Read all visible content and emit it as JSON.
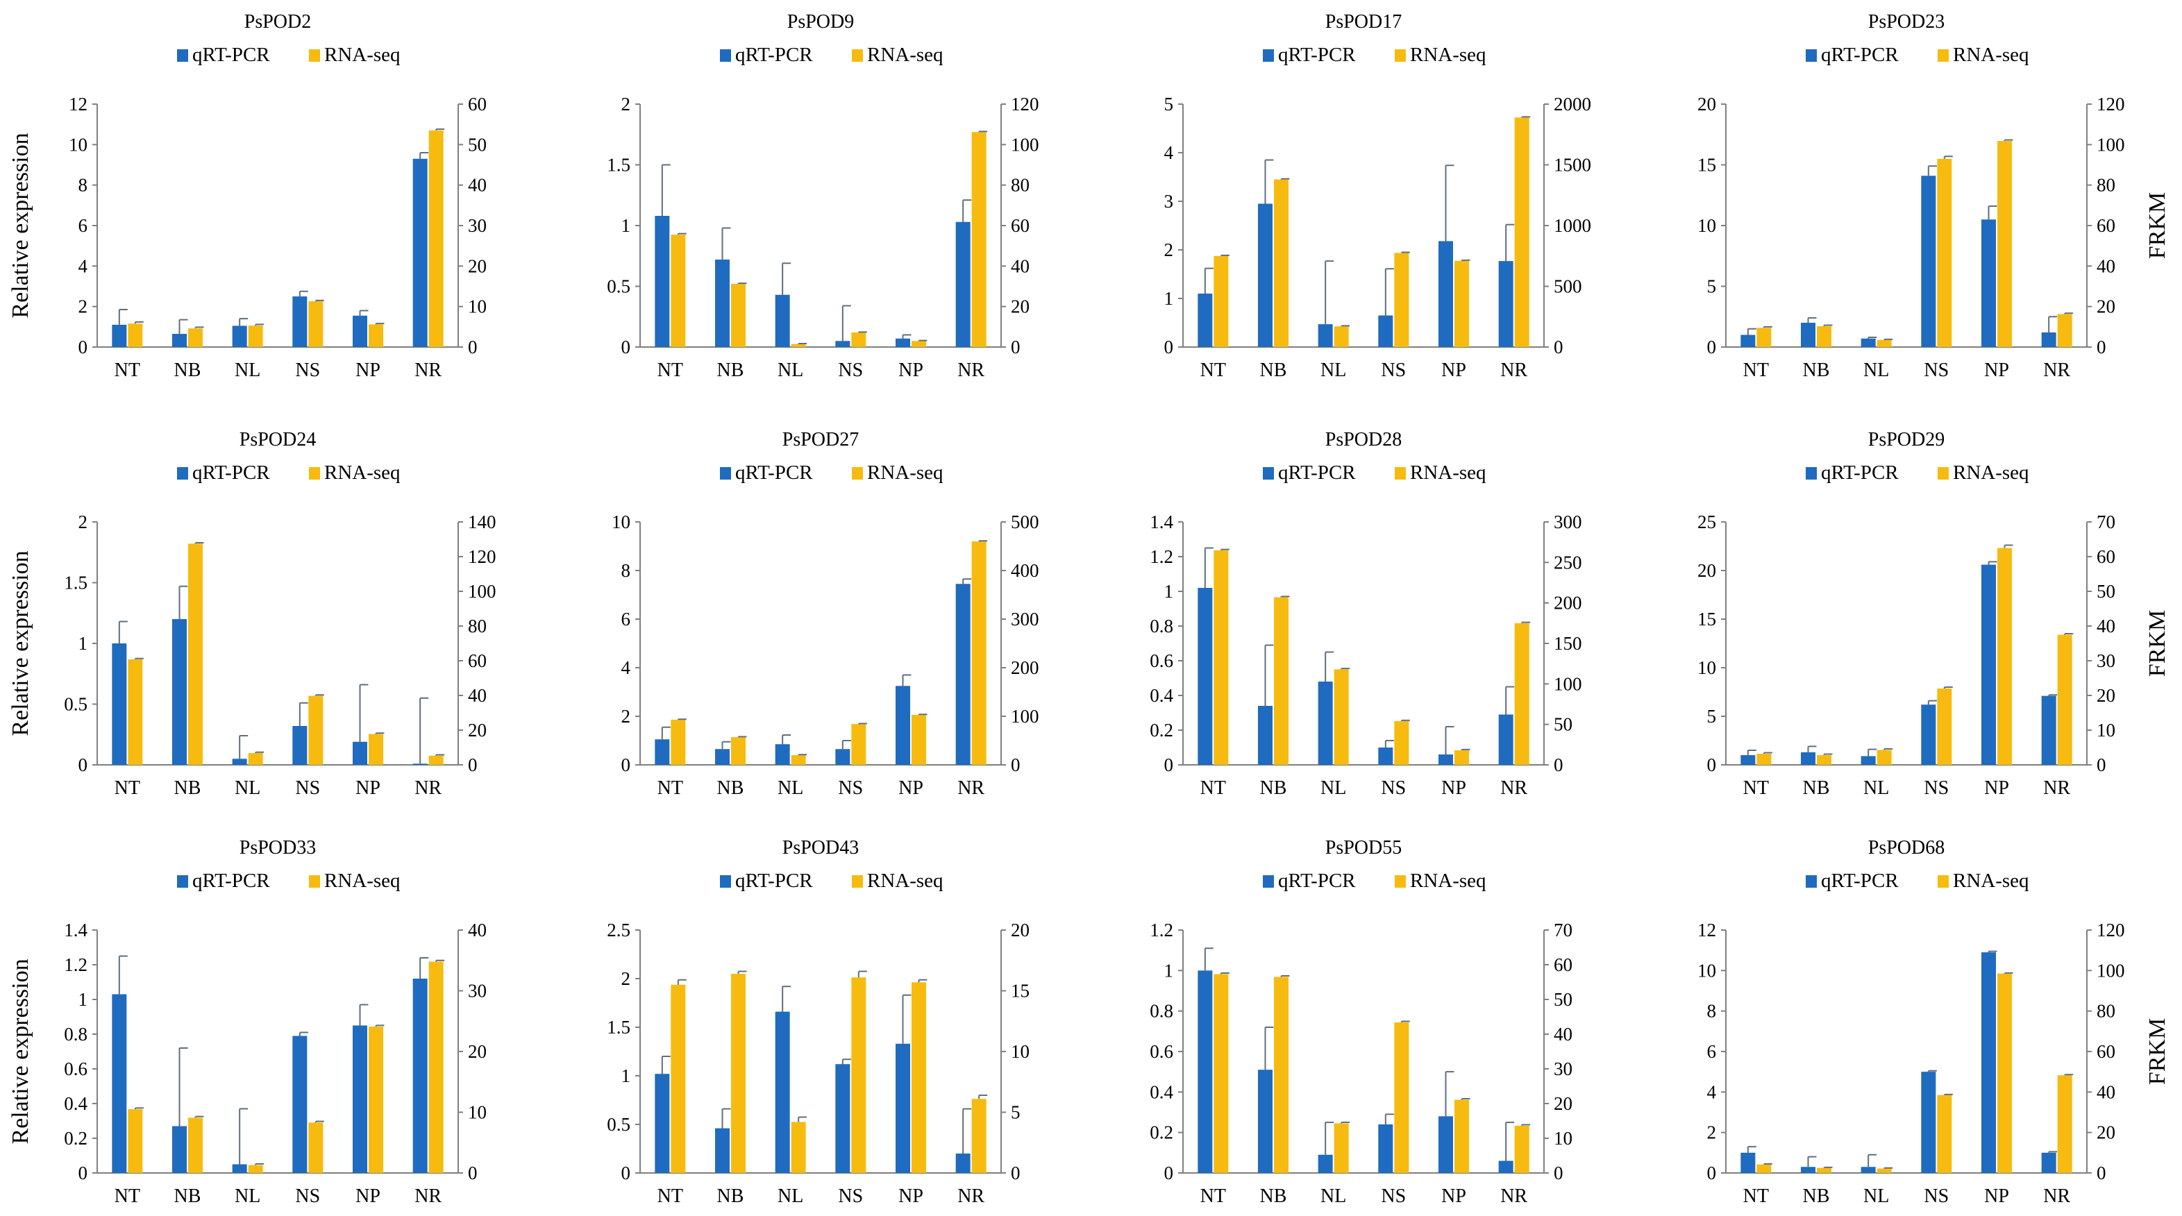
{
  "figure": {
    "left_axis_label": "Relative expression",
    "right_axis_label": "FRKM",
    "colors": {
      "qrt": "#1f6bbf",
      "rna": "#f7bb10",
      "axis": "#7f7f7f"
    }
  },
  "chart_data": [
    {
      "type": "bar",
      "title": "PsPOD2",
      "categories": [
        "NT",
        "NB",
        "NL",
        "NS",
        "NP",
        "NR"
      ],
      "series": [
        {
          "name": "qRT-PCR",
          "axis": "left",
          "values": [
            1.1,
            0.65,
            1.05,
            2.5,
            1.55,
            9.3
          ],
          "errors": [
            0.75,
            0.7,
            0.35,
            0.25,
            0.25,
            0.3
          ]
        },
        {
          "name": "RNA-seq",
          "axis": "right",
          "values": [
            5.8,
            4.6,
            5.3,
            11.3,
            5.6,
            53.5
          ],
          "errors": [
            0.4,
            0.3,
            0.3,
            0.2,
            0.2,
            0.3
          ]
        }
      ],
      "ylim_left": [
        0,
        12
      ],
      "yticks_left": [
        "0",
        "2",
        "4",
        "6",
        "8",
        "10",
        "12"
      ],
      "ylim_right": [
        0,
        60
      ],
      "yticks_right": [
        "0",
        "10",
        "20",
        "30",
        "40",
        "50",
        "60"
      ]
    },
    {
      "type": "bar",
      "title": "PsPOD9",
      "categories": [
        "NT",
        "NB",
        "NL",
        "NS",
        "NP",
        "NR"
      ],
      "series": [
        {
          "name": "qRT-PCR",
          "axis": "left",
          "values": [
            1.08,
            0.72,
            0.43,
            0.05,
            0.07,
            1.03
          ],
          "errors": [
            0.42,
            0.26,
            0.26,
            0.29,
            0.03,
            0.18
          ]
        },
        {
          "name": "RNA-seq",
          "axis": "right",
          "values": [
            55.5,
            31.2,
            1.5,
            7.2,
            3.0,
            106.2
          ],
          "errors": [
            0.5,
            0.3,
            0.2,
            0.2,
            0.2,
            0.3
          ]
        }
      ],
      "ylim_left": [
        0,
        2
      ],
      "yticks_left": [
        "0",
        "0.5",
        "1",
        "1.5",
        "2"
      ],
      "ylim_right": [
        0,
        120
      ],
      "yticks_right": [
        "0",
        "20",
        "40",
        "60",
        "80",
        "100",
        "120"
      ]
    },
    {
      "type": "bar",
      "title": "PsPOD17",
      "categories": [
        "NT",
        "NB",
        "NL",
        "NS",
        "NP",
        "NR"
      ],
      "series": [
        {
          "name": "qRT-PCR",
          "axis": "left",
          "values": [
            1.1,
            2.95,
            0.47,
            0.65,
            2.18,
            1.77
          ],
          "errors": [
            0.52,
            0.9,
            1.3,
            0.96,
            1.56,
            0.75
          ]
        },
        {
          "name": "RNA-seq",
          "axis": "right",
          "values": [
            750,
            1380,
            170,
            775,
            710,
            1890
          ],
          "errors": [
            5,
            5,
            5,
            5,
            5,
            5
          ]
        }
      ],
      "ylim_left": [
        0,
        5
      ],
      "yticks_left": [
        "0",
        "1",
        "2",
        "3",
        "4",
        "5"
      ],
      "ylim_right": [
        0,
        2000
      ],
      "yticks_right": [
        "0",
        "500",
        "1000",
        "1500",
        "2000"
      ]
    },
    {
      "type": "bar",
      "title": "PsPOD23",
      "categories": [
        "NT",
        "NB",
        "NL",
        "NS",
        "NP",
        "NR"
      ],
      "series": [
        {
          "name": "qRT-PCR",
          "axis": "left",
          "values": [
            1.0,
            2.0,
            0.7,
            14.1,
            10.5,
            1.2
          ],
          "errors": [
            0.5,
            0.4,
            0.1,
            0.8,
            1.1,
            1.3
          ]
        },
        {
          "name": "RNA-seq",
          "axis": "right",
          "values": [
            9.5,
            10.3,
            3.5,
            93,
            101.8,
            16.3
          ],
          "errors": [
            0.5,
            0.5,
            0.3,
            1.2,
            0.5,
            0.4
          ]
        }
      ],
      "ylim_left": [
        0,
        20
      ],
      "yticks_left": [
        "0",
        "5",
        "10",
        "15",
        "20"
      ],
      "ylim_right": [
        0,
        120
      ],
      "yticks_right": [
        "0",
        "20",
        "40",
        "60",
        "80",
        "100",
        "120"
      ]
    },
    {
      "type": "bar",
      "title": "PsPOD24",
      "categories": [
        "NT",
        "NB",
        "NL",
        "NS",
        "NP",
        "NR"
      ],
      "series": [
        {
          "name": "qRT-PCR",
          "axis": "left",
          "values": [
            1.0,
            1.2,
            0.05,
            0.32,
            0.19,
            0.01
          ],
          "errors": [
            0.18,
            0.27,
            0.19,
            0.19,
            0.47,
            0.54
          ]
        },
        {
          "name": "RNA-seq",
          "axis": "right",
          "values": [
            60.8,
            127.5,
            6.8,
            39.8,
            17.8,
            5.3
          ],
          "errors": [
            0.5,
            0.5,
            0.5,
            0.5,
            0.5,
            0.5
          ]
        }
      ],
      "ylim_left": [
        0,
        2
      ],
      "yticks_left": [
        "0",
        "0.5",
        "1",
        "1.5",
        "2"
      ],
      "ylim_right": [
        0,
        140
      ],
      "yticks_right": [
        "0",
        "20",
        "40",
        "60",
        "80",
        "100",
        "120",
        "140"
      ]
    },
    {
      "type": "bar",
      "title": "PsPOD27",
      "categories": [
        "NT",
        "NB",
        "NL",
        "NS",
        "NP",
        "NR"
      ],
      "series": [
        {
          "name": "qRT-PCR",
          "axis": "left",
          "values": [
            1.05,
            0.65,
            0.85,
            0.65,
            3.25,
            7.45
          ],
          "errors": [
            0.5,
            0.3,
            0.38,
            0.35,
            0.45,
            0.2
          ]
        },
        {
          "name": "RNA-seq",
          "axis": "right",
          "values": [
            93,
            57,
            20,
            84,
            103,
            460
          ],
          "errors": [
            1,
            1,
            1,
            1,
            1,
            1
          ]
        }
      ],
      "ylim_left": [
        0,
        10
      ],
      "yticks_left": [
        "0",
        "2",
        "4",
        "6",
        "8",
        "10"
      ],
      "ylim_right": [
        0,
        500
      ],
      "yticks_right": [
        "0",
        "100",
        "200",
        "300",
        "400",
        "500"
      ]
    },
    {
      "type": "bar",
      "title": "PsPOD28",
      "categories": [
        "NT",
        "NB",
        "NL",
        "NS",
        "NP",
        "NR"
      ],
      "series": [
        {
          "name": "qRT-PCR",
          "axis": "left",
          "values": [
            1.02,
            0.34,
            0.48,
            0.1,
            0.06,
            0.29
          ],
          "errors": [
            0.23,
            0.35,
            0.17,
            0.04,
            0.16,
            0.16
          ]
        },
        {
          "name": "RNA-seq",
          "axis": "right",
          "values": [
            265,
            207,
            118,
            54,
            18,
            175
          ],
          "errors": [
            1,
            1,
            1,
            1,
            1,
            1
          ]
        }
      ],
      "ylim_left": [
        0,
        1.4
      ],
      "yticks_left": [
        "0",
        "0.2",
        "0.4",
        "0.6",
        "0.8",
        "1",
        "1.2",
        "1.4"
      ],
      "ylim_right": [
        0,
        300
      ],
      "yticks_right": [
        "0",
        "50",
        "100",
        "150",
        "200",
        "250",
        "300"
      ]
    },
    {
      "type": "bar",
      "title": "PsPOD29",
      "categories": [
        "NT",
        "NB",
        "NL",
        "NS",
        "NP",
        "NR"
      ],
      "series": [
        {
          "name": "qRT-PCR",
          "axis": "left",
          "values": [
            1.0,
            1.3,
            0.9,
            6.2,
            20.6,
            7.1
          ],
          "errors": [
            0.5,
            0.6,
            0.7,
            0.4,
            0.3,
            0.1
          ]
        },
        {
          "name": "RNA-seq",
          "axis": "right",
          "values": [
            3.2,
            2.8,
            4.3,
            22,
            62.5,
            37.5
          ],
          "errors": [
            0.3,
            0.3,
            0.3,
            0.4,
            0.8,
            0.3
          ]
        }
      ],
      "ylim_left": [
        0,
        25
      ],
      "yticks_left": [
        "0",
        "5",
        "10",
        "15",
        "20",
        "25"
      ],
      "ylim_right": [
        0,
        70
      ],
      "yticks_right": [
        "0",
        "10",
        "20",
        "30",
        "40",
        "50",
        "60",
        "70"
      ]
    },
    {
      "type": "bar",
      "title": "PsPOD33",
      "categories": [
        "NT",
        "NB",
        "NL",
        "NS",
        "NP",
        "NR"
      ],
      "series": [
        {
          "name": "qRT-PCR",
          "axis": "left",
          "values": [
            1.03,
            0.27,
            0.05,
            0.79,
            0.85,
            1.12
          ],
          "errors": [
            0.22,
            0.45,
            0.32,
            0.02,
            0.12,
            0.12
          ]
        },
        {
          "name": "RNA-seq",
          "axis": "right",
          "values": [
            10.5,
            9.1,
            1.3,
            8.3,
            24.1,
            34.8
          ],
          "errors": [
            0.2,
            0.2,
            0.2,
            0.2,
            0.2,
            0.2
          ]
        }
      ],
      "ylim_left": [
        0,
        1.4
      ],
      "yticks_left": [
        "0",
        "0.2",
        "0.4",
        "0.6",
        "0.8",
        "1",
        "1.2",
        "1.4"
      ],
      "ylim_right": [
        0,
        40
      ],
      "yticks_right": [
        "0",
        "10",
        "20",
        "30",
        "40"
      ]
    },
    {
      "type": "bar",
      "title": "PsPOD43",
      "categories": [
        "NT",
        "NB",
        "NL",
        "NS",
        "NP",
        "NR"
      ],
      "series": [
        {
          "name": "qRT-PCR",
          "axis": "left",
          "values": [
            1.02,
            0.46,
            1.66,
            1.12,
            1.33,
            0.2
          ],
          "errors": [
            0.18,
            0.2,
            0.26,
            0.05,
            0.5,
            0.46
          ]
        },
        {
          "name": "RNA-seq",
          "axis": "right",
          "values": [
            15.5,
            16.4,
            4.2,
            16.1,
            15.7,
            6.1
          ],
          "errors": [
            0.4,
            0.2,
            0.4,
            0.5,
            0.2,
            0.3
          ]
        }
      ],
      "ylim_left": [
        0,
        2.5
      ],
      "yticks_left": [
        "0",
        "0.5",
        "1",
        "1.5",
        "2",
        "2.5"
      ],
      "ylim_right": [
        0,
        20
      ],
      "yticks_right": [
        "0",
        "5",
        "10",
        "15",
        "20"
      ]
    },
    {
      "type": "bar",
      "title": "PsPOD55",
      "categories": [
        "NT",
        "NB",
        "NL",
        "NS",
        "NP",
        "NR"
      ],
      "series": [
        {
          "name": "qRT-PCR",
          "axis": "left",
          "values": [
            1.0,
            0.51,
            0.09,
            0.24,
            0.28,
            0.06
          ],
          "errors": [
            0.11,
            0.21,
            0.16,
            0.05,
            0.22,
            0.19
          ]
        },
        {
          "name": "RNA-seq",
          "axis": "right",
          "values": [
            57.3,
            56.5,
            14.3,
            43.4,
            21.1,
            13.6
          ],
          "errors": [
            0.3,
            0.3,
            0.3,
            0.3,
            0.3,
            0.3
          ]
        }
      ],
      "ylim_left": [
        0,
        1.2
      ],
      "yticks_left": [
        "0",
        "0.2",
        "0.4",
        "0.6",
        "0.8",
        "1",
        "1.2"
      ],
      "ylim_right": [
        0,
        70
      ],
      "yticks_right": [
        "0",
        "10",
        "20",
        "30",
        "40",
        "50",
        "60",
        "70"
      ]
    },
    {
      "type": "bar",
      "title": "PsPOD68",
      "categories": [
        "NT",
        "NB",
        "NL",
        "NS",
        "NP",
        "NR"
      ],
      "series": [
        {
          "name": "qRT-PCR",
          "axis": "left",
          "values": [
            1.0,
            0.3,
            0.3,
            5.0,
            10.9,
            1.0
          ],
          "errors": [
            0.3,
            0.5,
            0.6,
            0.05,
            0.05,
            0.05
          ]
        },
        {
          "name": "RNA-seq",
          "axis": "right",
          "values": [
            4.2,
            2.5,
            2.2,
            38.5,
            98.5,
            48.3
          ],
          "errors": [
            0.3,
            0.3,
            0.3,
            0.3,
            0.3,
            0.3
          ]
        }
      ],
      "ylim_left": [
        0,
        12
      ],
      "yticks_left": [
        "0",
        "2",
        "4",
        "6",
        "8",
        "10",
        "12"
      ],
      "ylim_right": [
        0,
        120
      ],
      "yticks_right": [
        "0",
        "20",
        "40",
        "60",
        "80",
        "100",
        "120"
      ]
    }
  ]
}
